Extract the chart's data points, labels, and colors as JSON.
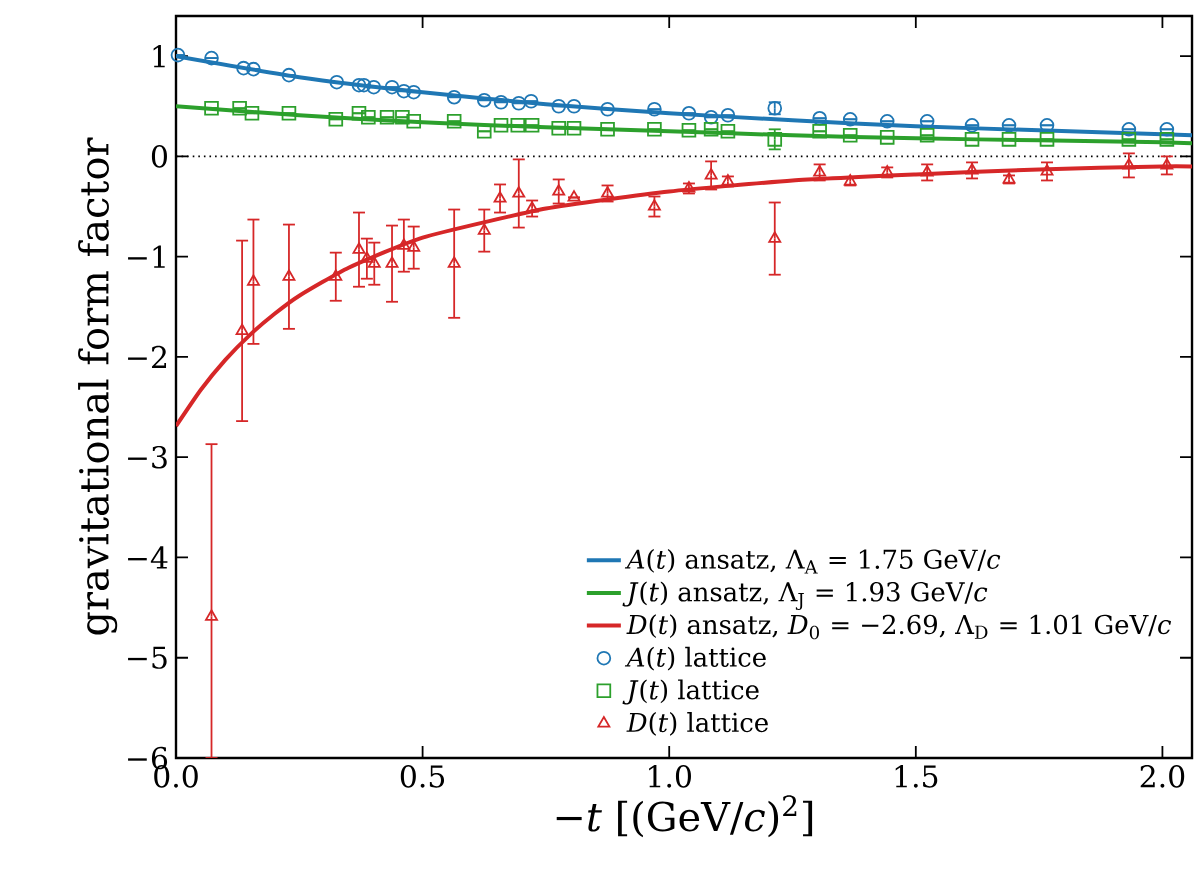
{
  "chart_data": {
    "type": "scatter",
    "xlabel": "−*t* [(GeV/*c*)$^{2}$]",
    "ylabel": "gravitational form factor",
    "xlim": [
      0,
      2.06
    ],
    "ylim": [
      -6,
      1.4
    ],
    "xticks": [
      {
        "value": 0,
        "label": "0.0"
      },
      {
        "value": 0.5,
        "label": "0.5"
      },
      {
        "value": 1,
        "label": "1.0"
      },
      {
        "value": 1.5,
        "label": "1.5"
      },
      {
        "value": 2,
        "label": "2.0"
      }
    ],
    "yticks": [
      {
        "value": -6,
        "label": "−6"
      },
      {
        "value": -5,
        "label": "−5"
      },
      {
        "value": -4,
        "label": "−4"
      },
      {
        "value": -3,
        "label": "−3"
      },
      {
        "value": -2,
        "label": "−2"
      },
      {
        "value": -1,
        "label": "−1"
      },
      0,
      1
    ],
    "grid": false,
    "legend": "bottom right",
    "ref_lines": [
      {
        "axis": "y",
        "value": 0,
        "color": "#000000",
        "line_style": "dotted"
      }
    ],
    "series": [
      {
        "name": "*A*(*t*) ansatz, Λ$_{A}$ = 1.75 GeV/*c*",
        "type": "line",
        "color": "#1f77b4",
        "marker": "none",
        "line_style": "solid",
        "x": [
          0,
          0.25,
          0.5,
          0.75,
          1,
          1.25,
          1.5,
          1.75,
          2,
          2.06
        ],
        "values": [
          1,
          0.79,
          0.64,
          0.52,
          0.43,
          0.36,
          0.3,
          0.26,
          0.22,
          0.21
        ]
      },
      {
        "name": "*J*(*t*) ansatz, Λ$_{J}$ = 1.93 GeV/*c*",
        "type": "line",
        "color": "#2ca02c",
        "marker": "none",
        "line_style": "solid",
        "x": [
          0,
          0.25,
          0.5,
          0.75,
          1,
          1.25,
          1.5,
          1.75,
          2,
          2.06
        ],
        "values": [
          0.5,
          0.41,
          0.34,
          0.29,
          0.25,
          0.21,
          0.18,
          0.16,
          0.14,
          0.13
        ]
      },
      {
        "name": "*D*(*t*) ansatz, *D*$_{0}$ = −2.69,  Λ$_{D}$ = 1.01 GeV/*c*",
        "type": "line",
        "color": "#d62728",
        "marker": "none",
        "line_style": "solid",
        "x": [
          0,
          0.05,
          0.1,
          0.15,
          0.2,
          0.25,
          0.35,
          0.5,
          0.75,
          1,
          1.25,
          1.5,
          1.75,
          2,
          2.06
        ],
        "values": [
          -2.69,
          -2.33,
          -2.03,
          -1.78,
          -1.57,
          -1.39,
          -1.11,
          -0.81,
          -0.52,
          -0.35,
          -0.24,
          -0.18,
          -0.13,
          -0.1,
          -0.1
        ]
      },
      {
        "name": "*A*(*t*) lattice",
        "color": "#1f77b4",
        "marker": "circle",
        "x": [
          0.004,
          0.072,
          0.137,
          0.157,
          0.229,
          0.326,
          0.371,
          0.381,
          0.401,
          0.438,
          0.462,
          0.482,
          0.564,
          0.625,
          0.659,
          0.695,
          0.72,
          0.776,
          0.807,
          0.875,
          0.97,
          1.04,
          1.085,
          1.119,
          1.214,
          1.305,
          1.367,
          1.442,
          1.523,
          1.614,
          1.689,
          1.766,
          1.932,
          2.009
        ],
        "values": [
          1.01,
          0.98,
          0.88,
          0.87,
          0.81,
          0.74,
          0.71,
          0.71,
          0.69,
          0.69,
          0.65,
          0.64,
          0.59,
          0.56,
          0.54,
          0.53,
          0.55,
          0.5,
          0.5,
          0.47,
          0.47,
          0.43,
          0.39,
          0.41,
          0.48,
          0.38,
          0.37,
          0.35,
          0.35,
          0.31,
          0.31,
          0.31,
          0.27,
          0.27
        ],
        "errors": [
          null,
          null,
          null,
          null,
          null,
          null,
          null,
          null,
          null,
          null,
          null,
          null,
          null,
          null,
          null,
          null,
          null,
          null,
          null,
          null,
          null,
          null,
          null,
          null,
          0.06,
          null,
          null,
          null,
          null,
          null,
          null,
          null,
          null,
          null
        ]
      },
      {
        "name": "*J*(*t*) lattice",
        "color": "#2ca02c",
        "marker": "square",
        "x": [
          0.072,
          0.129,
          0.154,
          0.229,
          0.324,
          0.371,
          0.39,
          0.428,
          0.459,
          0.482,
          0.564,
          0.625,
          0.659,
          0.693,
          0.722,
          0.776,
          0.807,
          0.875,
          0.97,
          1.04,
          1.085,
          1.119,
          1.214,
          1.305,
          1.367,
          1.442,
          1.523,
          1.614,
          1.689,
          1.766,
          1.932,
          2.009
        ],
        "values": [
          0.48,
          0.48,
          0.43,
          0.43,
          0.37,
          0.43,
          0.39,
          0.39,
          0.39,
          0.35,
          0.35,
          0.25,
          0.31,
          0.31,
          0.31,
          0.28,
          0.28,
          0.27,
          0.27,
          0.26,
          0.27,
          0.25,
          0.17,
          0.25,
          0.21,
          0.19,
          0.21,
          0.17,
          0.17,
          0.17,
          0.17,
          0.17
        ],
        "errors": [
          null,
          null,
          null,
          null,
          null,
          null,
          null,
          null,
          null,
          null,
          null,
          null,
          null,
          null,
          null,
          null,
          null,
          null,
          null,
          null,
          null,
          null,
          0.1,
          null,
          null,
          null,
          null,
          null,
          null,
          null,
          null,
          null
        ]
      },
      {
        "name": "*D*(*t*) lattice",
        "color": "#d62728",
        "marker": "triangle",
        "x": [
          0.072,
          0.134,
          0.157,
          0.229,
          0.324,
          0.371,
          0.387,
          0.402,
          0.438,
          0.462,
          0.482,
          0.564,
          0.625,
          0.657,
          0.695,
          0.722,
          0.776,
          0.807,
          0.875,
          0.97,
          1.04,
          1.085,
          1.119,
          1.214,
          1.305,
          1.367,
          1.442,
          1.523,
          1.614,
          1.689,
          1.766,
          1.932,
          2.009
        ],
        "values": [
          -4.59,
          -1.74,
          -1.25,
          -1.2,
          -1.2,
          -0.93,
          -1.02,
          -1.07,
          -1.07,
          -0.89,
          -0.91,
          -1.07,
          -0.74,
          -0.42,
          -0.37,
          -0.52,
          -0.35,
          -0.41,
          -0.37,
          -0.5,
          -0.32,
          -0.19,
          -0.25,
          -0.82,
          -0.16,
          -0.25,
          -0.16,
          -0.16,
          -0.14,
          -0.23,
          -0.15,
          -0.09,
          -0.09
        ],
        "errors": [
          [
            -6,
            -2.87
          ],
          0.9,
          0.62,
          0.52,
          0.24,
          0.37,
          0.2,
          0.21,
          0.38,
          0.26,
          0.21,
          0.54,
          0.21,
          0.14,
          0.34,
          0.08,
          0.12,
          null,
          0.08,
          0.1,
          0.05,
          0.14,
          0.05,
          0.36,
          0.08,
          0.04,
          0.05,
          0.08,
          0.08,
          0.04,
          0.09,
          0.12,
          0.09
        ]
      }
    ]
  }
}
